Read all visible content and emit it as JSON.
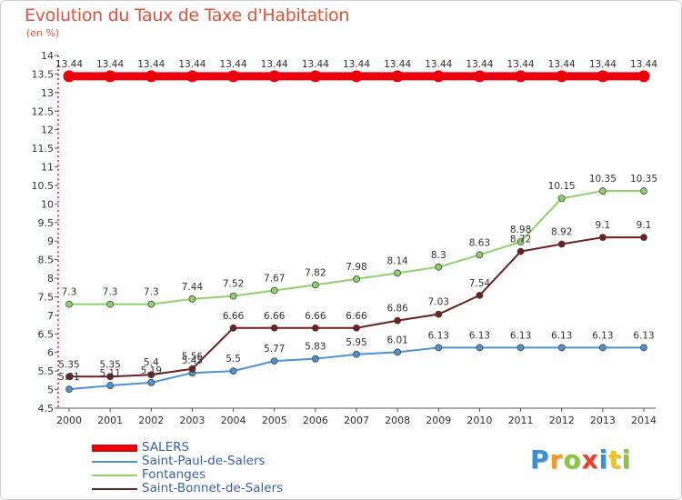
{
  "title": "Evolution du Taux de Taxe d'Habitation",
  "subtitle": "(en %)",
  "logo": {
    "text": "Proxiti",
    "letters": [
      {
        "ch": "P",
        "color": "#3a8fd1"
      },
      {
        "ch": "r",
        "color": "#f29a1d"
      },
      {
        "ch": "o",
        "color": "#8cc63f"
      },
      {
        "ch": "x",
        "color": "#e8412d"
      },
      {
        "ch": "i",
        "color": "#3a8fd1"
      },
      {
        "ch": "t",
        "color": "#f2c21d"
      },
      {
        "ch": "i",
        "color": "#8cc63f"
      }
    ]
  },
  "chart_data": {
    "type": "line",
    "title": "Evolution du Taux de Taxe d'Habitation",
    "subtitle": "(en %)",
    "x": [
      "2000",
      "2001",
      "2002",
      "2003",
      "2004",
      "2005",
      "2006",
      "2007",
      "2008",
      "2009",
      "2010",
      "2011",
      "2012",
      "2013",
      "2014"
    ],
    "ylim": [
      4.5,
      14
    ],
    "yticks": [
      "4.5",
      "5",
      "5.5",
      "6",
      "6.5",
      "7",
      "7.5",
      "8",
      "8.5",
      "9",
      "9.5",
      "10",
      "10.5",
      "11",
      "11.5",
      "12",
      "12.5",
      "13",
      "13.5",
      "14"
    ],
    "grid": false,
    "legend_position": "bottom-left",
    "series": [
      {
        "name": "SALERS",
        "color": "#e8000b",
        "values": [
          13.44,
          13.44,
          13.44,
          13.44,
          13.44,
          13.44,
          13.44,
          13.44,
          13.44,
          13.44,
          13.44,
          13.44,
          13.44,
          13.44,
          13.44
        ],
        "labels": [
          "13.44",
          "13.44",
          "13.44",
          "13.44",
          "13.44",
          "13.44",
          "13.44",
          "13.44",
          "13.44",
          "13.44",
          "13.44",
          "13.44",
          "13.44",
          "13.44",
          "13.44"
        ]
      },
      {
        "name": "Saint-Paul-de-Salers",
        "color": "#4d93cf",
        "values": [
          5.01,
          5.11,
          5.19,
          5.45,
          5.5,
          5.77,
          5.83,
          5.95,
          6.01,
          6.13,
          6.13,
          6.13,
          6.13,
          6.13,
          6.13
        ],
        "labels": [
          "5.01",
          "5.11",
          "5.19",
          "5.45",
          "5.5",
          "5.77",
          "5.83",
          "5.95",
          "6.01",
          "6.13",
          "6.13",
          "6.13",
          "6.13",
          "6.13",
          "6.13"
        ]
      },
      {
        "name": "Fontanges",
        "color": "#8fd16a",
        "values": [
          7.3,
          7.3,
          7.3,
          7.44,
          7.52,
          7.67,
          7.82,
          7.98,
          8.14,
          8.3,
          8.63,
          8.98,
          10.15,
          10.35,
          10.35
        ],
        "labels": [
          "7.3",
          "7.3",
          "7.3",
          "7.44",
          "7.52",
          "7.67",
          "7.82",
          "7.98",
          "8.14",
          "8.3",
          "8.63",
          "8.98",
          "10.15",
          "10.35",
          "10.35"
        ]
      },
      {
        "name": "Saint-Bonnet-de-Salers",
        "color": "#6e1f1f",
        "values": [
          5.35,
          5.35,
          5.4,
          5.56,
          6.66,
          6.66,
          6.66,
          6.66,
          6.86,
          7.03,
          7.54,
          8.72,
          8.92,
          9.1,
          9.1
        ],
        "labels": [
          "5.35",
          "5.35",
          "5.4",
          "5.56",
          "6.66",
          "6.66",
          "6.66",
          "6.66",
          "6.86",
          "7.03",
          "7.54",
          "8.72",
          "8.92",
          "9.1",
          "9.1"
        ]
      }
    ]
  }
}
